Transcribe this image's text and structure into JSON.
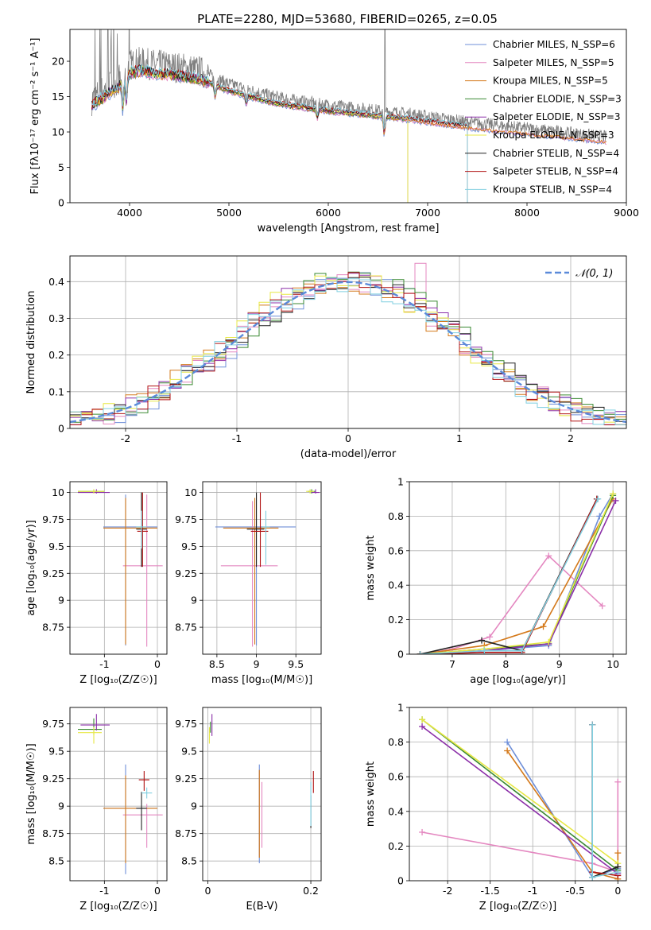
{
  "title": "PLATE=2280, MJD=53680, FIBERID=0265, z=0.05",
  "colors": {
    "chabrier_miles": "#6f8fd8",
    "salpeter_miles": "#e487c0",
    "kroupa_miles": "#d4791b",
    "chabrier_elodie": "#3a8a32",
    "salpeter_elodie": "#8b2fa8",
    "kroupa_elodie": "#e8e845",
    "chabrier_stelib": "#222222",
    "salpeter_stelib": "#b01010",
    "kroupa_stelib": "#80cfe0",
    "data": "#808080",
    "normal": "#5b8ad9",
    "grid": "#b0b0b0"
  },
  "chart_data": [
    {
      "id": "spectrum",
      "type": "line",
      "title": "PLATE=2280, MJD=53680, FIBERID=0265, z=0.05",
      "xlabel": "wavelength [Angstrom, rest frame]",
      "ylabel": "Flux [fλ10⁻¹⁷ erg cm⁻² s⁻¹ A⁻¹]",
      "xlim": [
        3400,
        9000
      ],
      "ylim": [
        0,
        24.5
      ],
      "xticks": [
        4000,
        5000,
        6000,
        7000,
        8000,
        9000
      ],
      "yticks": [
        0,
        5,
        10,
        15,
        20
      ],
      "grid": false,
      "legend_position": "top-right",
      "legend": [
        "Chabrier MILES, N_SSP=6",
        "Salpeter MILES, N_SSP=5",
        "Kroupa MILES, N_SSP=5",
        "Chabrier ELODIE, N_SSP=3",
        "Salpeter ELODIE, N_SSP=3",
        "Kroupa ELODIE, N_SSP=3",
        "Chabrier STELIB, N_SSP=4",
        "Salpeter STELIB, N_SSP=4",
        "Kroupa STELIB, N_SSP=4"
      ],
      "data_envelope": {
        "x": [
          3620,
          3700,
          3800,
          3900,
          3950,
          4000,
          4100,
          4200,
          4300,
          4400,
          4500,
          4600,
          4700,
          4800,
          4900,
          5000,
          5200,
          5400,
          5600,
          5800,
          6000,
          6200,
          6400,
          6600,
          6800,
          7000,
          7200,
          7400,
          7600,
          7800,
          8000,
          8200,
          8400,
          8600,
          8800,
          9000
        ],
        "y": [
          14.5,
          15.5,
          16.5,
          17.5,
          18.5,
          19.5,
          19.8,
          19.6,
          19.4,
          19.3,
          19.1,
          18.9,
          18.6,
          18.1,
          17.4,
          16.8,
          16.0,
          15.2,
          14.6,
          14.2,
          13.8,
          13.5,
          13.2,
          12.9,
          12.6,
          12.2,
          11.8,
          11.4,
          11.1,
          10.8,
          10.5,
          10.2,
          9.9,
          9.6,
          9.3,
          9.1
        ]
      }
    },
    {
      "id": "residuals",
      "type": "line",
      "xlabel": "(data-model)/error",
      "ylabel": "Normed distribution",
      "xlim": [
        -2.5,
        2.5
      ],
      "ylim": [
        0,
        0.47
      ],
      "xticks": [
        -2,
        -1,
        0,
        1,
        2
      ],
      "yticks": [
        0.0,
        0.1,
        0.2,
        0.3,
        0.4
      ],
      "grid": true,
      "legend_position": "top-right",
      "legend": [
        "𝒩(0, 1)"
      ],
      "bin_width": 0.1
    },
    {
      "id": "age_vs_Z",
      "type": "scatter",
      "xlabel": "Z [log₁₀(Z/Z☉)]",
      "ylabel": "age  [log₁₀(age/yr)]",
      "xlim": [
        -1.65,
        0.18
      ],
      "ylim": [
        8.5,
        10.1
      ],
      "xticks": [
        -1,
        0
      ],
      "yticks": [
        8.75,
        9.0,
        9.25,
        9.5,
        9.75,
        10.0
      ],
      "grid": true,
      "points": [
        {
          "model": "chabrier_miles",
          "x": -0.6,
          "y": 9.68,
          "xerr": [
            0.42,
            0.6
          ],
          "yerr": [
            1.1,
            0.3
          ]
        },
        {
          "model": "salpeter_miles",
          "x": -0.2,
          "y": 9.32,
          "xerr": [
            0.45,
            0.3
          ],
          "yerr": [
            0.75,
            0.66
          ]
        },
        {
          "model": "kroupa_miles",
          "x": -0.6,
          "y": 9.67,
          "xerr": [
            0.42,
            0.6
          ],
          "yerr": [
            1.08,
            0.28
          ]
        },
        {
          "model": "chabrier_elodie",
          "x": -1.2,
          "y": 10.01,
          "xerr": [
            0.3,
            0.2
          ],
          "yerr": [
            0.01,
            0.02
          ]
        },
        {
          "model": "salpeter_elodie",
          "x": -1.15,
          "y": 10.0,
          "xerr": [
            0.35,
            0.25
          ],
          "yerr": [
            0.01,
            0.03
          ]
        },
        {
          "model": "kroupa_elodie",
          "x": -1.2,
          "y": 10.01,
          "xerr": [
            0.3,
            0.2
          ],
          "yerr": [
            0.02,
            0.02
          ]
        },
        {
          "model": "chabrier_stelib",
          "x": -0.3,
          "y": 9.66,
          "xerr": [
            0.1,
            0.1
          ],
          "yerr": [
            0.35,
            0.34
          ]
        },
        {
          "model": "salpeter_stelib",
          "x": -0.28,
          "y": 9.64,
          "xerr": [
            0.1,
            0.1
          ],
          "yerr": [
            0.33,
            0.36
          ]
        },
        {
          "model": "kroupa_stelib",
          "x": -0.3,
          "y": 9.68,
          "xerr": [
            0.1,
            0.1
          ],
          "yerr": [
            0.2,
            0.15
          ]
        }
      ]
    },
    {
      "id": "age_vs_mass",
      "type": "scatter",
      "xlabel": "mass [log₁₀(M/M☉)]",
      "xlim": [
        8.32,
        9.82
      ],
      "ylim": [
        8.5,
        10.1
      ],
      "xticks": [
        8.5,
        9.0,
        9.5
      ],
      "yticks": [
        8.75,
        9.0,
        9.25,
        9.5,
        9.75,
        10.0
      ],
      "grid": true,
      "points": [
        {
          "model": "chabrier_miles",
          "x": 9.0,
          "y": 9.68,
          "xerr": [
            0.52,
            0.5
          ],
          "yerr": [
            1.1,
            0.3
          ]
        },
        {
          "model": "salpeter_miles",
          "x": 8.95,
          "y": 9.32,
          "xerr": [
            0.4,
            0.32
          ],
          "yerr": [
            0.75,
            0.6
          ]
        },
        {
          "model": "kroupa_miles",
          "x": 8.98,
          "y": 9.67,
          "xerr": [
            0.4,
            0.3
          ],
          "yerr": [
            1.08,
            0.28
          ]
        },
        {
          "model": "chabrier_elodie",
          "x": 9.7,
          "y": 10.01,
          "xerr": [
            0.05,
            0.05
          ],
          "yerr": [
            0.02,
            0.02
          ]
        },
        {
          "model": "salpeter_elodie",
          "x": 9.75,
          "y": 10.0,
          "xerr": [
            0.05,
            0.05
          ],
          "yerr": [
            0.01,
            0.03
          ]
        },
        {
          "model": "kroupa_elodie",
          "x": 9.68,
          "y": 10.01,
          "xerr": [
            0.05,
            0.05
          ],
          "yerr": [
            0.02,
            0.02
          ]
        },
        {
          "model": "chabrier_stelib",
          "x": 9.0,
          "y": 9.66,
          "xerr": [
            0.12,
            0.1
          ],
          "yerr": [
            0.35,
            0.34
          ]
        },
        {
          "model": "salpeter_stelib",
          "x": 9.05,
          "y": 9.64,
          "xerr": [
            0.12,
            0.1
          ],
          "yerr": [
            0.33,
            0.36
          ]
        },
        {
          "model": "kroupa_stelib",
          "x": 9.12,
          "y": 9.68,
          "xerr": [
            0.05,
            0.05
          ],
          "yerr": [
            0.35,
            0.15
          ]
        }
      ]
    },
    {
      "id": "weight_vs_age",
      "type": "line",
      "xlabel": "age  [log₁₀(age/yr)]",
      "ylabel": "mass weight",
      "xlim": [
        6.2,
        10.25
      ],
      "ylim": [
        0,
        1
      ],
      "xticks": [
        7,
        8,
        9,
        10
      ],
      "yticks": [
        0.0,
        0.2,
        0.4,
        0.6,
        0.8,
        1.0
      ],
      "grid": true,
      "series": [
        {
          "model": "chabrier_miles",
          "x": [
            6.4,
            7.6,
            8.8,
            9.75,
            10.0
          ],
          "y": [
            0.0,
            0.02,
            0.05,
            0.8,
            0.93
          ]
        },
        {
          "model": "salpeter_miles",
          "x": [
            6.4,
            7.0,
            7.7,
            8.8,
            9.8
          ],
          "y": [
            0.0,
            0.03,
            0.1,
            0.57,
            0.28
          ]
        },
        {
          "model": "kroupa_miles",
          "x": [
            6.4,
            7.6,
            8.7,
            10.0
          ],
          "y": [
            0.0,
            0.05,
            0.16,
            0.9
          ]
        },
        {
          "model": "chabrier_elodie",
          "x": [
            6.4,
            7.6,
            8.8,
            10.0
          ],
          "y": [
            0.0,
            0.03,
            0.06,
            0.92
          ]
        },
        {
          "model": "salpeter_elodie",
          "x": [
            6.4,
            7.6,
            8.8,
            10.05
          ],
          "y": [
            0.0,
            0.02,
            0.06,
            0.89
          ]
        },
        {
          "model": "kroupa_elodie",
          "x": [
            6.4,
            7.6,
            8.8,
            10.0
          ],
          "y": [
            0.0,
            0.03,
            0.07,
            0.93
          ]
        },
        {
          "model": "chabrier_stelib",
          "x": [
            6.4,
            7.55,
            8.3,
            9.7
          ],
          "y": [
            0.0,
            0.08,
            0.02,
            0.9
          ]
        },
        {
          "model": "salpeter_stelib",
          "x": [
            6.4,
            7.6,
            8.3,
            9.7
          ],
          "y": [
            0.0,
            0.01,
            0.01,
            0.9
          ]
        },
        {
          "model": "kroupa_stelib",
          "x": [
            6.4,
            7.6,
            8.3,
            9.72
          ],
          "y": [
            0.0,
            0.02,
            0.02,
            0.9
          ]
        }
      ]
    },
    {
      "id": "mass_vs_Z",
      "type": "scatter",
      "xlabel": "Z [log₁₀(Z/Z☉)]",
      "ylabel": "mass [log₁₀(M/M☉)]",
      "xlim": [
        -1.65,
        0.18
      ],
      "ylim": [
        8.32,
        9.9
      ],
      "xticks": [
        -1,
        0
      ],
      "yticks": [
        8.5,
        8.75,
        9.0,
        9.25,
        9.5,
        9.75
      ],
      "grid": true,
      "points": [
        {
          "model": "chabrier_miles",
          "x": -0.6,
          "y": 8.98,
          "xerr": [
            0.42,
            0.6
          ],
          "yerr": [
            0.6,
            0.4
          ]
        },
        {
          "model": "salpeter_miles",
          "x": -0.2,
          "y": 8.92,
          "xerr": [
            0.45,
            0.3
          ],
          "yerr": [
            0.3,
            0.1
          ]
        },
        {
          "model": "kroupa_miles",
          "x": -0.6,
          "y": 8.98,
          "xerr": [
            0.42,
            0.6
          ],
          "yerr": [
            0.5,
            0.3
          ]
        },
        {
          "model": "chabrier_elodie",
          "x": -1.2,
          "y": 9.7,
          "xerr": [
            0.3,
            0.15
          ],
          "yerr": [
            0.05,
            0.1
          ]
        },
        {
          "model": "salpeter_elodie",
          "x": -1.15,
          "y": 9.74,
          "xerr": [
            0.3,
            0.25
          ],
          "yerr": [
            0.05,
            0.1
          ]
        },
        {
          "model": "kroupa_elodie",
          "x": -1.2,
          "y": 9.67,
          "xerr": [
            0.3,
            0.15
          ],
          "yerr": [
            0.1,
            0.05
          ]
        },
        {
          "model": "chabrier_stelib",
          "x": -0.3,
          "y": 8.98,
          "xerr": [
            0.1,
            0.1
          ],
          "yerr": [
            0.2,
            0.15
          ]
        },
        {
          "model": "salpeter_stelib",
          "x": -0.25,
          "y": 9.24,
          "xerr": [
            0.1,
            0.1
          ],
          "yerr": [
            0.1,
            0.08
          ]
        },
        {
          "model": "kroupa_stelib",
          "x": -0.2,
          "y": 9.12,
          "xerr": [
            0.1,
            0.1
          ],
          "yerr": [
            0.05,
            0.05
          ]
        }
      ]
    },
    {
      "id": "mass_vs_ebv",
      "type": "scatter",
      "xlabel": "E(B-V)",
      "xlim": [
        -0.01,
        0.22
      ],
      "ylim": [
        8.32,
        9.9
      ],
      "xticks": [
        0.0,
        0.2
      ],
      "yticks": [
        8.5,
        8.75,
        9.0,
        9.25,
        9.5,
        9.75
      ],
      "grid": true,
      "points": [
        {
          "model": "chabrier_miles",
          "x": 0.1,
          "y": 8.98,
          "yerr": [
            0.5,
            0.4
          ]
        },
        {
          "model": "salpeter_miles",
          "x": 0.105,
          "y": 8.92,
          "yerr": [
            0.3,
            0.3
          ]
        },
        {
          "model": "kroupa_miles",
          "x": 0.1,
          "y": 8.98,
          "yerr": [
            0.45,
            0.35
          ]
        },
        {
          "model": "chabrier_elodie",
          "x": 0.005,
          "y": 9.72,
          "yerr": [
            0.05,
            0.05
          ]
        },
        {
          "model": "salpeter_elodie",
          "x": 0.008,
          "y": 9.74,
          "yerr": [
            0.1,
            0.1
          ]
        },
        {
          "model": "kroupa_elodie",
          "x": 0.003,
          "y": 9.67,
          "yerr": [
            0.1,
            0.05
          ]
        },
        {
          "model": "chabrier_stelib",
          "x": 0.2,
          "y": 8.95,
          "yerr": [
            0.15,
            0.15
          ]
        },
        {
          "model": "salpeter_stelib",
          "x": 0.205,
          "y": 9.22,
          "yerr": [
            0.1,
            0.1
          ]
        },
        {
          "model": "kroupa_stelib",
          "x": 0.2,
          "y": 9.02,
          "yerr": [
            0.2,
            0.2
          ]
        }
      ]
    },
    {
      "id": "weight_vs_Z",
      "type": "line",
      "xlabel": "Z [log₁₀(Z/Z☉)]",
      "ylabel": "mass weight",
      "xlim": [
        -2.45,
        0.1
      ],
      "ylim": [
        0,
        1
      ],
      "xticks": [
        -2.0,
        -1.5,
        -1.0,
        -0.5,
        0.0
      ],
      "yticks": [
        0.0,
        0.2,
        0.4,
        0.6,
        0.8,
        1.0
      ],
      "grid": true,
      "series": [
        {
          "model": "chabrier_miles",
          "x": [
            -1.3,
            -0.3,
            0.0
          ],
          "y": [
            0.8,
            0.02,
            0.07
          ]
        },
        {
          "model": "salpeter_miles",
          "x": [
            -2.3,
            -0.3,
            0.0,
            0.0
          ],
          "y": [
            0.28,
            0.1,
            0.05,
            0.57
          ]
        },
        {
          "model": "kroupa_miles",
          "x": [
            -1.3,
            -0.3,
            0.0,
            0.0
          ],
          "y": [
            0.75,
            0.05,
            0.01,
            0.16
          ]
        },
        {
          "model": "chabrier_elodie",
          "x": [
            -2.3,
            0.0
          ],
          "y": [
            0.93,
            0.06
          ]
        },
        {
          "model": "salpeter_elodie",
          "x": [
            -2.3,
            0.0
          ],
          "y": [
            0.89,
            0.04
          ]
        },
        {
          "model": "kroupa_elodie",
          "x": [
            -2.3,
            0.0
          ],
          "y": [
            0.93,
            0.1
          ]
        },
        {
          "model": "chabrier_stelib",
          "x": [
            -0.3,
            -0.3,
            0.0
          ],
          "y": [
            0.9,
            0.02,
            0.08
          ]
        },
        {
          "model": "salpeter_stelib",
          "x": [
            -0.3,
            -0.3,
            0.0
          ],
          "y": [
            0.9,
            0.05,
            0.03
          ]
        },
        {
          "model": "kroupa_stelib",
          "x": [
            -0.3,
            -0.3,
            0.0
          ],
          "y": [
            0.9,
            0.02,
            0.05
          ]
        }
      ]
    }
  ]
}
